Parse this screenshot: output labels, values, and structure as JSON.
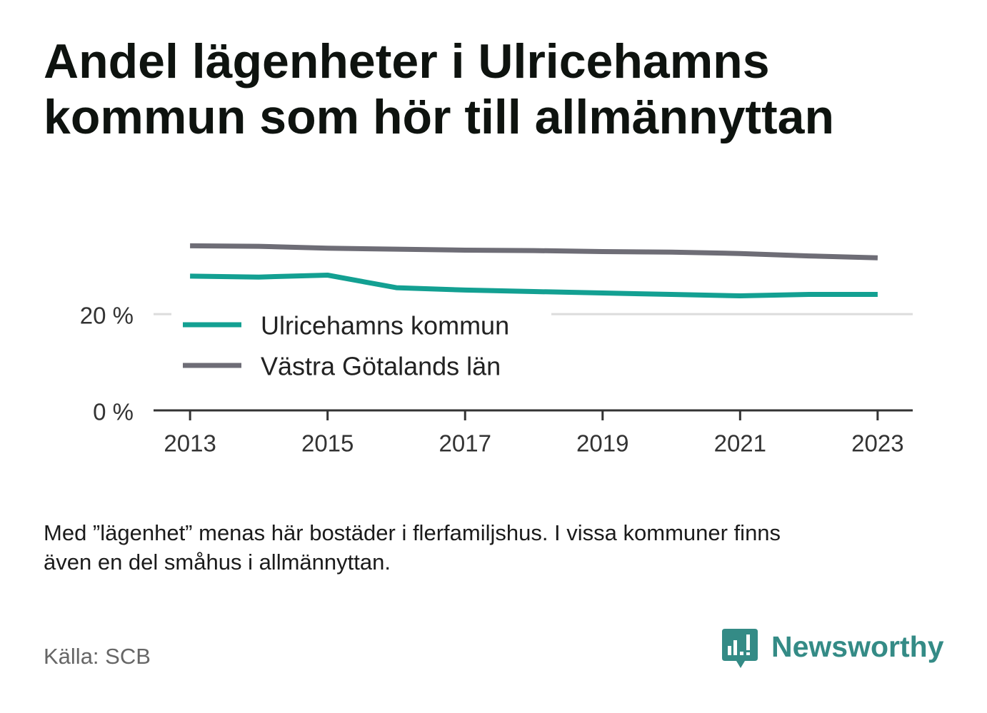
{
  "title": "Andel lägenheter i Ulricehamns kommun som hör till allmännyttan",
  "footnote": "Med ”lägenhet” menas här bostäder i flerfamiljshus. I vissa kommuner finns även en del småhus i allmännyttan.",
  "source": "Källa: SCB",
  "brand": {
    "name": "Newsworthy",
    "color": "#348b86",
    "icon": "newsworthy-logo-icon"
  },
  "chart_data": {
    "type": "line",
    "x": [
      2013,
      2014,
      2015,
      2016,
      2017,
      2018,
      2019,
      2020,
      2021,
      2022,
      2023
    ],
    "series": [
      {
        "name": "Ulricehamns kommun",
        "color": "#13a092",
        "values": [
          27.9,
          27.7,
          28.1,
          25.5,
          25.0,
          24.7,
          24.4,
          24.1,
          23.8,
          24.1,
          24.1
        ]
      },
      {
        "name": "Västra Götalands län",
        "color": "#6e6d76",
        "values": [
          34.2,
          34.1,
          33.7,
          33.5,
          33.3,
          33.2,
          33.0,
          32.9,
          32.6,
          32.1,
          31.7
        ]
      }
    ],
    "x_ticks": [
      {
        "value": 2013,
        "label": "2013"
      },
      {
        "value": 2015,
        "label": "2015"
      },
      {
        "value": 2017,
        "label": "2017"
      },
      {
        "value": 2019,
        "label": "2019"
      },
      {
        "value": 2021,
        "label": "2021"
      },
      {
        "value": 2023,
        "label": "2023"
      }
    ],
    "y_ticks": [
      {
        "value": 0,
        "label": "0 %"
      },
      {
        "value": 20,
        "label": "20 %"
      }
    ],
    "xlim": [
      2012.5,
      2023.5
    ],
    "ylim": [
      0,
      35
    ],
    "grid": "horizontal",
    "legend": "inside lower-left"
  }
}
